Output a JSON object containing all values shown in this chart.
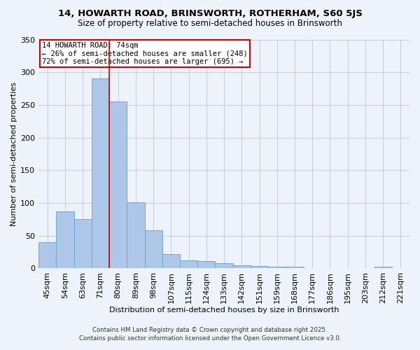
{
  "title1": "14, HOWARTH ROAD, BRINSWORTH, ROTHERHAM, S60 5JS",
  "title2": "Size of property relative to semi-detached houses in Brinsworth",
  "xlabel": "Distribution of semi-detached houses by size in Brinsworth",
  "ylabel": "Number of semi-detached properties",
  "categories": [
    "45sqm",
    "54sqm",
    "63sqm",
    "71sqm",
    "80sqm",
    "89sqm",
    "98sqm",
    "107sqm",
    "115sqm",
    "124sqm",
    "133sqm",
    "142sqm",
    "151sqm",
    "159sqm",
    "168sqm",
    "177sqm",
    "186sqm",
    "195sqm",
    "203sqm",
    "212sqm",
    "221sqm"
  ],
  "values": [
    40,
    87,
    75,
    291,
    255,
    101,
    58,
    22,
    12,
    11,
    8,
    5,
    4,
    3,
    3,
    0,
    0,
    0,
    0,
    3,
    0
  ],
  "bar_color": "#aec6e8",
  "bar_edge_color": "#6aaad4",
  "grid_color": "#c8d0e0",
  "bg_color": "#eef2fb",
  "vline_index": 3,
  "vline_color": "#cc0000",
  "annotation_title": "14 HOWARTH ROAD: 74sqm",
  "annotation_line2": "← 26% of semi-detached houses are smaller (248)",
  "annotation_line3": "72% of semi-detached houses are larger (695) →",
  "annotation_box_color": "#ffffff",
  "annotation_box_edge": "#cc0000",
  "footer1": "Contains HM Land Registry data © Crown copyright and database right 2025.",
  "footer2": "Contains public sector information licensed under the Open Government Licence v3.0.",
  "ylim": [
    0,
    350
  ],
  "yticks": [
    0,
    50,
    100,
    150,
    200,
    250,
    300,
    350
  ]
}
